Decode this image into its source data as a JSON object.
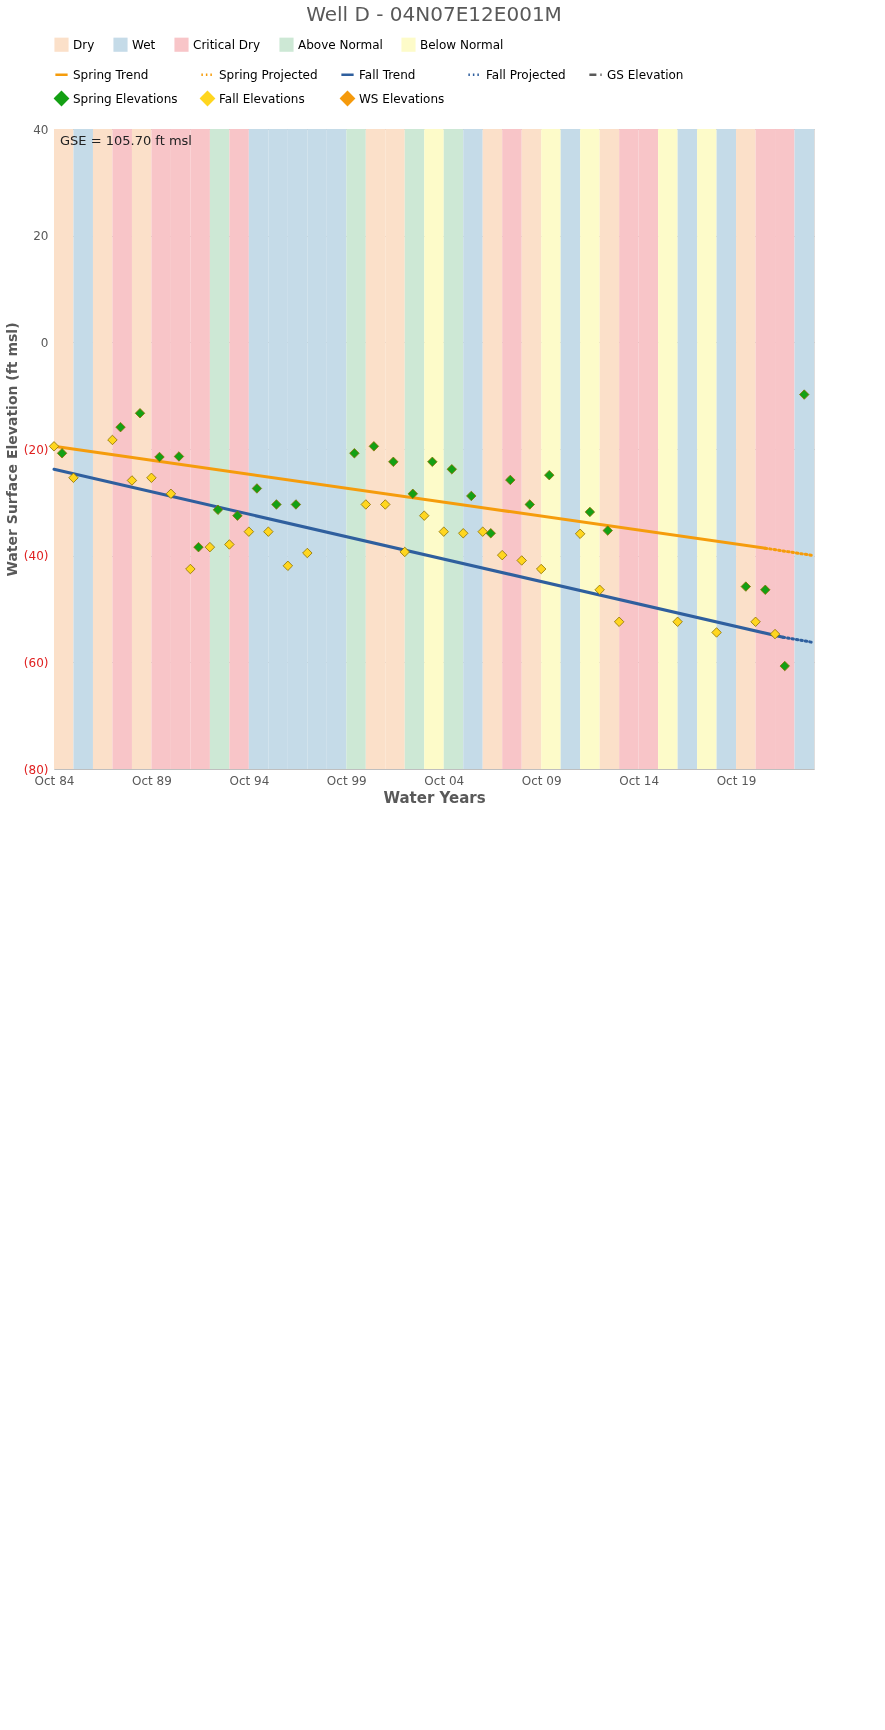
{
  "chart_data": {
    "type": "scatter",
    "title": "Well D - 04N07E12E001M",
    "xlabel": "Water Years",
    "ylabel": "Water Surface Elevation (ft msl)",
    "annotations": [
      "GSE = 105.70 ft msl"
    ],
    "xlim": [
      "1984-10",
      "2023-10"
    ],
    "xticks": [
      {
        "value": "1984-10",
        "label": "Oct 84"
      },
      {
        "value": "1989-10",
        "label": "Oct 89"
      },
      {
        "value": "1994-10",
        "label": "Oct 94"
      },
      {
        "value": "1999-10",
        "label": "Oct 99"
      },
      {
        "value": "2004-10",
        "label": "Oct 04"
      },
      {
        "value": "2009-10",
        "label": "Oct 09"
      },
      {
        "value": "2014-10",
        "label": "Oct 14"
      },
      {
        "value": "2019-10",
        "label": "Oct 19"
      }
    ],
    "ylim": [
      -80,
      40
    ],
    "yticks": [
      {
        "value": -80,
        "label": "(80)"
      },
      {
        "value": -60,
        "label": "(60)"
      },
      {
        "value": -40,
        "label": "(40)"
      },
      {
        "value": -20,
        "label": "(20)"
      },
      0,
      20,
      40
    ],
    "grid": "y",
    "legend": "top",
    "bands": [
      {
        "axis": "x",
        "from": "1984-10",
        "to": "1985-10",
        "label": "Dry",
        "color": "#fbe0c9"
      },
      {
        "axis": "x",
        "from": "1985-10",
        "to": "1986-10",
        "label": "Wet",
        "color": "#c5dbe8"
      },
      {
        "axis": "x",
        "from": "1986-10",
        "to": "1987-10",
        "color": "#fbe0c9"
      },
      {
        "axis": "x",
        "from": "1987-10",
        "to": "1988-10",
        "label": "Critical Dry",
        "color": "#f8c5c8"
      },
      {
        "axis": "x",
        "from": "1988-10",
        "to": "1989-10",
        "color": "#fbe0c9"
      },
      {
        "axis": "x",
        "from": "1989-10",
        "to": "1990-10",
        "color": "#f8c5c8"
      },
      {
        "axis": "x",
        "from": "1990-10",
        "to": "1991-10",
        "color": "#f8c5c8"
      },
      {
        "axis": "x",
        "from": "1991-10",
        "to": "1992-10",
        "color": "#f8c5c8"
      },
      {
        "axis": "x",
        "from": "1992-10",
        "to": "1993-10",
        "label": "Above Normal",
        "color": "#cde8d5"
      },
      {
        "axis": "x",
        "from": "1993-10",
        "to": "1994-10",
        "color": "#f8c5c8"
      },
      {
        "axis": "x",
        "from": "1994-10",
        "to": "1995-10",
        "color": "#c5dbe8"
      },
      {
        "axis": "x",
        "from": "1995-10",
        "to": "1996-10",
        "color": "#c5dbe8"
      },
      {
        "axis": "x",
        "from": "1996-10",
        "to": "1997-10",
        "color": "#c5dbe8"
      },
      {
        "axis": "x",
        "from": "1997-10",
        "to": "1998-10",
        "color": "#c5dbe8"
      },
      {
        "axis": "x",
        "from": "1998-10",
        "to": "1999-10",
        "color": "#c5dbe8"
      },
      {
        "axis": "x",
        "from": "1999-10",
        "to": "2000-10",
        "color": "#cde8d5"
      },
      {
        "axis": "x",
        "from": "2000-10",
        "to": "2001-10",
        "color": "#fbe0c9"
      },
      {
        "axis": "x",
        "from": "2001-10",
        "to": "2002-10",
        "color": "#fbe0c9"
      },
      {
        "axis": "x",
        "from": "2002-10",
        "to": "2003-10",
        "color": "#cde8d5"
      },
      {
        "axis": "x",
        "from": "2003-10",
        "to": "2004-10",
        "label": "Below Normal",
        "color": "#fdfbc9"
      },
      {
        "axis": "x",
        "from": "2004-10",
        "to": "2005-10",
        "color": "#cde8d5"
      },
      {
        "axis": "x",
        "from": "2005-10",
        "to": "2006-10",
        "color": "#c5dbe8"
      },
      {
        "axis": "x",
        "from": "2006-10",
        "to": "2007-10",
        "color": "#fbe0c9"
      },
      {
        "axis": "x",
        "from": "2007-10",
        "to": "2008-10",
        "color": "#f8c5c8"
      },
      {
        "axis": "x",
        "from": "2008-10",
        "to": "2009-10",
        "color": "#fbe0c9"
      },
      {
        "axis": "x",
        "from": "2009-10",
        "to": "2010-10",
        "color": "#fdfbc9"
      },
      {
        "axis": "x",
        "from": "2010-10",
        "to": "2011-10",
        "color": "#c5dbe8"
      },
      {
        "axis": "x",
        "from": "2011-10",
        "to": "2012-10",
        "color": "#fdfbc9"
      },
      {
        "axis": "x",
        "from": "2012-10",
        "to": "2013-10",
        "color": "#fbe0c9"
      },
      {
        "axis": "x",
        "from": "2013-10",
        "to": "2014-10",
        "color": "#f8c5c8"
      },
      {
        "axis": "x",
        "from": "2014-10",
        "to": "2015-10",
        "color": "#f8c5c8"
      },
      {
        "axis": "x",
        "from": "2015-10",
        "to": "2016-10",
        "color": "#fdfbc9"
      },
      {
        "axis": "x",
        "from": "2016-10",
        "to": "2017-10",
        "color": "#c5dbe8"
      },
      {
        "axis": "x",
        "from": "2017-10",
        "to": "2018-10",
        "color": "#fdfbc9"
      },
      {
        "axis": "x",
        "from": "2018-10",
        "to": "2019-10",
        "color": "#c5dbe8"
      },
      {
        "axis": "x",
        "from": "2019-10",
        "to": "2020-10",
        "color": "#fbe0c9"
      },
      {
        "axis": "x",
        "from": "2020-10",
        "to": "2021-10",
        "color": "#f8c5c8"
      },
      {
        "axis": "x",
        "from": "2021-10",
        "to": "2022-10",
        "color": "#f8c5c8"
      },
      {
        "axis": "x",
        "from": "2022-10",
        "to": "2023-10",
        "color": "#c5dbe8"
      }
    ],
    "series": [
      {
        "name": "Spring Trend",
        "type": "line",
        "color": "#f59c0c",
        "line_style": "solid",
        "x": [
          "1984-10",
          "2021-04"
        ],
        "values": [
          -19.5,
          -38.6
        ]
      },
      {
        "name": "Spring Projected",
        "type": "line",
        "color": "#f59c0c",
        "line_style": "dotted",
        "x": [
          "2021-04",
          "2023-10"
        ],
        "values": [
          -38.6,
          -40.0
        ]
      },
      {
        "name": "Fall Trend",
        "type": "line",
        "color": "#2f5f9e",
        "line_style": "solid",
        "x": [
          "1984-10",
          "2022-03"
        ],
        "values": [
          -23.8,
          -55.3
        ]
      },
      {
        "name": "Fall Projected",
        "type": "line",
        "color": "#2f5f9e",
        "line_style": "dotted",
        "x": [
          "2022-03",
          "2023-10"
        ],
        "values": [
          -55.3,
          -56.3
        ]
      },
      {
        "name": "GS Elevation",
        "type": "line",
        "color": "#595959",
        "line_style": "dashed"
      },
      {
        "name": "Spring Elevations",
        "marker": "diamond",
        "color": "#14a014",
        "x": [
          "1985-03",
          "1988-03",
          "1989-03",
          "1990-03",
          "1991-03",
          "1992-03",
          "1993-03",
          "1994-03",
          "1995-03",
          "1996-03",
          "1997-03",
          "2000-03",
          "2001-03",
          "2002-03",
          "2003-03",
          "2004-03",
          "2005-03",
          "2006-03",
          "2007-03",
          "2008-03",
          "2009-03",
          "2010-03",
          "2012-04",
          "2013-03",
          "2020-04",
          "2021-04",
          "2022-04",
          "2023-04"
        ],
        "values": [
          -20.8,
          -15.9,
          -13.3,
          -21.5,
          -21.4,
          -38.4,
          -31.4,
          -32.5,
          -27.4,
          -30.4,
          -30.4,
          -20.8,
          -19.5,
          -22.4,
          -28.4,
          -22.4,
          -23.8,
          -28.8,
          -35.8,
          -25.8,
          -30.4,
          -24.9,
          -31.8,
          -35.3,
          -45.8,
          -46.4,
          -60.7,
          -9.8
        ]
      },
      {
        "name": "Fall Elevations",
        "marker": "diamond",
        "color": "#ffd61f",
        "x": [
          "1984-10",
          "1985-10",
          "1987-10",
          "1988-10",
          "1989-10",
          "1990-10",
          "1991-10",
          "1992-10",
          "1993-10",
          "1994-10",
          "1995-10",
          "1996-10",
          "1997-10",
          "2000-10",
          "2001-10",
          "2002-10",
          "2003-10",
          "2004-10",
          "2005-10",
          "2006-10",
          "2007-10",
          "2008-10",
          "2009-10",
          "2011-10",
          "2012-10",
          "2013-10",
          "2016-10",
          "2018-10",
          "2020-10",
          "2021-10"
        ],
        "values": [
          -19.5,
          -25.4,
          -18.3,
          -25.9,
          -25.4,
          -28.4,
          -42.5,
          -38.4,
          -37.9,
          -35.5,
          -35.5,
          -41.9,
          -39.5,
          -30.4,
          -30.4,
          -39.3,
          -32.5,
          -35.5,
          -35.8,
          -35.5,
          -39.9,
          -40.9,
          -42.5,
          -35.9,
          -46.4,
          -52.4,
          -52.4,
          -54.4,
          -52.4,
          -54.7
        ]
      },
      {
        "name": "WS Elevations",
        "marker": "diamond",
        "color": "#f59a0c"
      }
    ]
  }
}
